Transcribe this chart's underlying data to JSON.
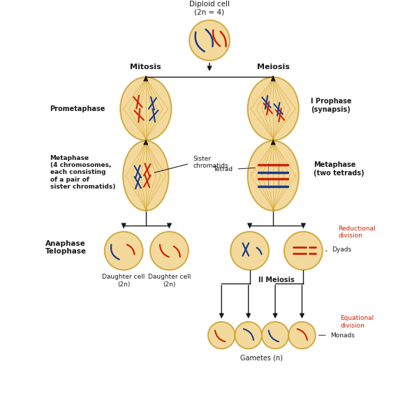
{
  "bg_color": "#ffffff",
  "cell_face_color": "#f5d899",
  "cell_edge_color": "#c8a030",
  "cell_alpha": 0.88,
  "spindle_color": "#d4a830",
  "chr_red": "#cc2200",
  "chr_blue": "#1a3a8a",
  "arrow_color": "#1a1a1a",
  "label_color": "#1a1a1a",
  "red_label_color": "#cc2200",
  "title_top": "Diploid cell\n(2n = 4)",
  "label_mitosis": "Mitosis",
  "label_meiosis": "Meiosis",
  "label_prometaphase": "Prometaphase",
  "label_metaphase_mit": "Metaphase\n(4 chromosomes,\neach consisting\nof a pair of\nsister chromatids)",
  "label_metaphase_mei": "Metaphase\n(two tetrads)",
  "label_iprophase": "I Prophase\n(synapsis)",
  "label_anaphase": "Anaphase\nTelophase",
  "label_daughter1": "Daughter cell\n(2n)",
  "label_daughter2": "Daughter cell\n(2n)",
  "label_sister_chromatids": "Sister\nchromatids",
  "label_tetrad": "Tetrad",
  "label_dyads": "Dyads",
  "label_reductional": "Reductional\ndivision",
  "label_equational": "Equational\ndivision",
  "label_ii_meiosis": "II Meiosis",
  "label_gametes": "Gametes (n)",
  "label_monads": "Monads"
}
